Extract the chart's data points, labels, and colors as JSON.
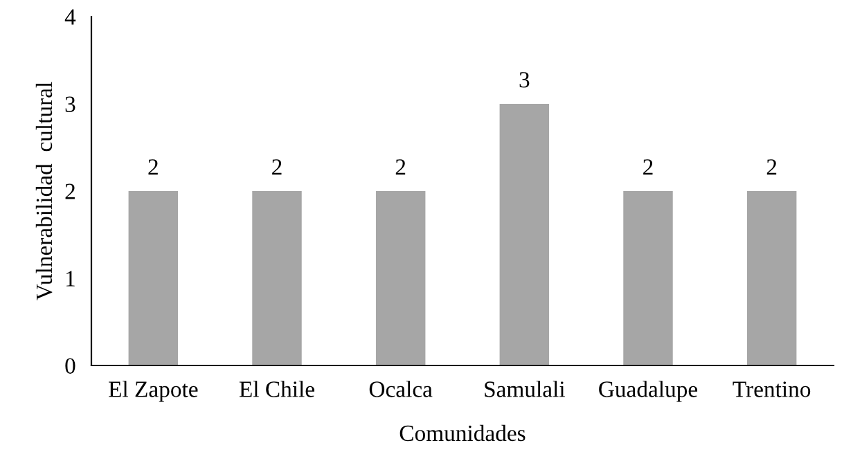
{
  "chart_data": {
    "type": "bar",
    "xlabel": "Comunidades",
    "ylabel": "Vulnerabilidad  cultural",
    "categories": [
      "El Zapote",
      "El Chile",
      "Ocalca",
      "Samulali",
      "Guadalupe",
      "Trentino"
    ],
    "values": [
      2,
      2,
      2,
      3,
      2,
      2
    ],
    "color": "#a6a6a6",
    "ylim": [
      0,
      4
    ],
    "yticks": [
      0,
      1,
      2,
      3,
      4
    ],
    "data_labels": true,
    "grid": false,
    "legend": false
  }
}
